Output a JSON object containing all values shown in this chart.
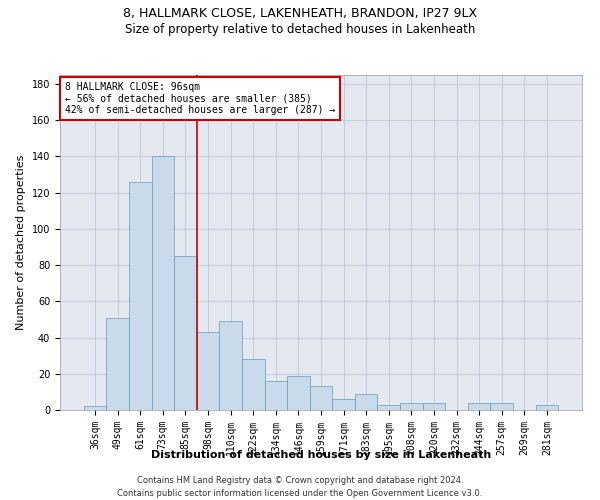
{
  "title_line1": "8, HALLMARK CLOSE, LAKENHEATH, BRANDON, IP27 9LX",
  "title_line2": "Size of property relative to detached houses in Lakenheath",
  "xlabel": "Distribution of detached houses by size in Lakenheath",
  "ylabel": "Number of detached properties",
  "bar_color": "#c9daea",
  "bar_edge_color": "#6699bb",
  "grid_color": "#b0b8cc",
  "background_color": "#e4e8f0",
  "bins": [
    "36sqm",
    "49sqm",
    "61sqm",
    "73sqm",
    "85sqm",
    "98sqm",
    "110sqm",
    "122sqm",
    "134sqm",
    "146sqm",
    "159sqm",
    "171sqm",
    "183sqm",
    "195sqm",
    "208sqm",
    "220sqm",
    "232sqm",
    "244sqm",
    "257sqm",
    "269sqm",
    "281sqm"
  ],
  "values": [
    2,
    51,
    126,
    140,
    85,
    43,
    49,
    28,
    16,
    19,
    13,
    6,
    9,
    3,
    4,
    4,
    0,
    4,
    4,
    0,
    3
  ],
  "ylim": [
    0,
    185
  ],
  "yticks": [
    0,
    20,
    40,
    60,
    80,
    100,
    120,
    140,
    160,
    180
  ],
  "vline_bin_index": 5,
  "vline_color": "#cc0000",
  "annotation_text": "8 HALLMARK CLOSE: 96sqm\n← 56% of detached houses are smaller (385)\n42% of semi-detached houses are larger (287) →",
  "annotation_box_color": "#ffffff",
  "annotation_box_edge": "#cc0000",
  "footer_line1": "Contains HM Land Registry data © Crown copyright and database right 2024.",
  "footer_line2": "Contains public sector information licensed under the Open Government Licence v3.0.",
  "title_fontsize": 9,
  "subtitle_fontsize": 8.5,
  "tick_fontsize": 7,
  "label_fontsize": 8,
  "annotation_fontsize": 7,
  "footer_fontsize": 6
}
